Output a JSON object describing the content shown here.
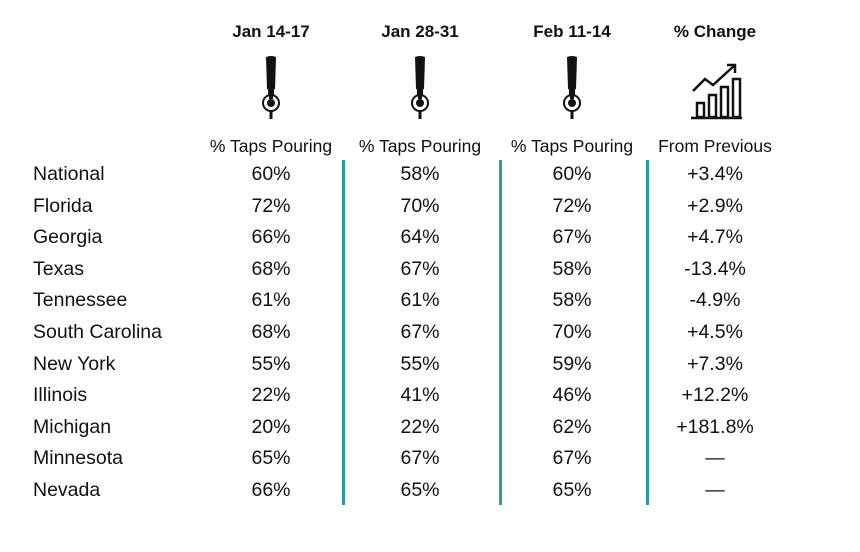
{
  "chart_data": {
    "type": "table",
    "columns": [
      {
        "header": "Jan 14-17",
        "subheader": "% Taps Pouring",
        "icon": "beer-tap-icon"
      },
      {
        "header": "Jan 28-31",
        "subheader": "% Taps Pouring",
        "icon": "beer-tap-icon"
      },
      {
        "header": "Feb 11-14",
        "subheader": "% Taps Pouring",
        "icon": "beer-tap-icon"
      },
      {
        "header": "% Change",
        "subheader": "From Previous",
        "icon": "growth-chart-icon"
      }
    ],
    "rows": [
      {
        "label": "National",
        "values": [
          "60%",
          "58%",
          "60%",
          "+3.4%"
        ]
      },
      {
        "label": "Florida",
        "values": [
          "72%",
          "70%",
          "72%",
          "+2.9%"
        ]
      },
      {
        "label": "Georgia",
        "values": [
          "66%",
          "64%",
          "67%",
          "+4.7%"
        ]
      },
      {
        "label": "Texas",
        "values": [
          "68%",
          "67%",
          "58%",
          "-13.4%"
        ]
      },
      {
        "label": "Tennessee",
        "values": [
          "61%",
          "61%",
          "58%",
          "-4.9%"
        ]
      },
      {
        "label": "South Carolina",
        "values": [
          "68%",
          "67%",
          "70%",
          "+4.5%"
        ]
      },
      {
        "label": "New York",
        "values": [
          "55%",
          "55%",
          "59%",
          "+7.3%"
        ]
      },
      {
        "label": "Illinois",
        "values": [
          "22%",
          "41%",
          "46%",
          "+12.2%"
        ]
      },
      {
        "label": "Michigan",
        "values": [
          "20%",
          "22%",
          "62%",
          "+181.8%"
        ]
      },
      {
        "label": "Minnesota",
        "values": [
          "65%",
          "67%",
          "67%",
          "—"
        ]
      },
      {
        "label": "Nevada",
        "values": [
          "66%",
          "65%",
          "65%",
          "—"
        ]
      }
    ],
    "divider_color": "#2a9ca0"
  }
}
